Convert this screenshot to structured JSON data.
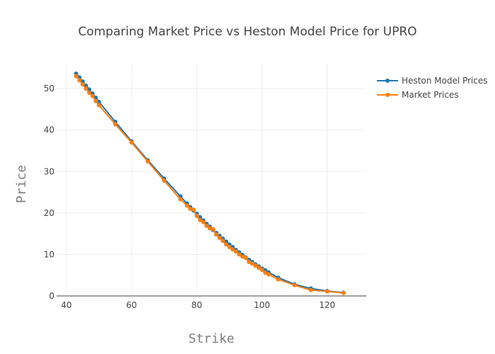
{
  "chart_data": {
    "type": "line",
    "title": "Comparing Market Price vs Heston Model Price for UPRO",
    "xlabel": "Strike",
    "ylabel": "Price",
    "xlim": [
      37,
      132
    ],
    "ylim": [
      0,
      56
    ],
    "xticks": [
      40,
      60,
      80,
      100,
      120
    ],
    "yticks": [
      0,
      10,
      20,
      30,
      40,
      50
    ],
    "grid": true,
    "legend_position": "top-right",
    "series": [
      {
        "name": "Heston Model Prices",
        "color": "#1f77b4",
        "x": [
          43,
          44,
          45,
          46,
          47,
          48,
          49,
          50,
          55,
          60,
          65,
          70,
          75,
          77,
          78,
          79,
          80,
          81,
          82,
          83,
          84,
          85,
          86,
          87,
          88,
          89,
          90,
          91,
          92,
          93,
          94,
          95,
          96,
          97,
          98,
          99,
          100,
          101,
          102,
          105,
          110,
          115,
          120,
          125
        ],
        "y": [
          53.6,
          52.7,
          51.7,
          50.7,
          49.8,
          48.8,
          47.8,
          46.8,
          42.0,
          37.3,
          32.7,
          28.3,
          24.0,
          22.3,
          21.4,
          20.6,
          19.8,
          19.0,
          18.2,
          17.4,
          16.7,
          15.9,
          15.2,
          14.5,
          13.8,
          13.1,
          12.4,
          11.8,
          11.1,
          10.5,
          9.9,
          9.3,
          8.7,
          8.2,
          7.6,
          7.1,
          6.6,
          6.2,
          5.7,
          4.4,
          2.8,
          1.8,
          1.2,
          0.8
        ]
      },
      {
        "name": "Market Prices",
        "color": "#ff7f0e",
        "x": [
          43,
          44,
          45,
          46,
          47,
          48,
          49,
          50,
          55,
          60,
          65,
          70,
          75,
          77,
          78,
          79,
          80,
          81,
          82,
          83,
          84,
          85,
          86,
          87,
          88,
          89,
          90,
          91,
          92,
          93,
          94,
          95,
          96,
          97,
          98,
          99,
          100,
          101,
          102,
          105,
          110,
          115,
          120,
          125
        ],
        "y": [
          53.0,
          52.0,
          51.0,
          50.0,
          49.0,
          48.2,
          47.0,
          46.0,
          41.4,
          37.0,
          32.4,
          27.8,
          23.3,
          21.8,
          21.0,
          20.8,
          19.3,
          18.3,
          17.8,
          16.9,
          16.3,
          16.1,
          14.8,
          14.0,
          13.3,
          12.4,
          11.8,
          11.2,
          10.7,
          10.0,
          9.5,
          9.2,
          8.2,
          7.8,
          7.3,
          6.8,
          6.3,
          5.6,
          5.2,
          4.0,
          2.6,
          1.4,
          1.1,
          0.7
        ]
      }
    ]
  }
}
